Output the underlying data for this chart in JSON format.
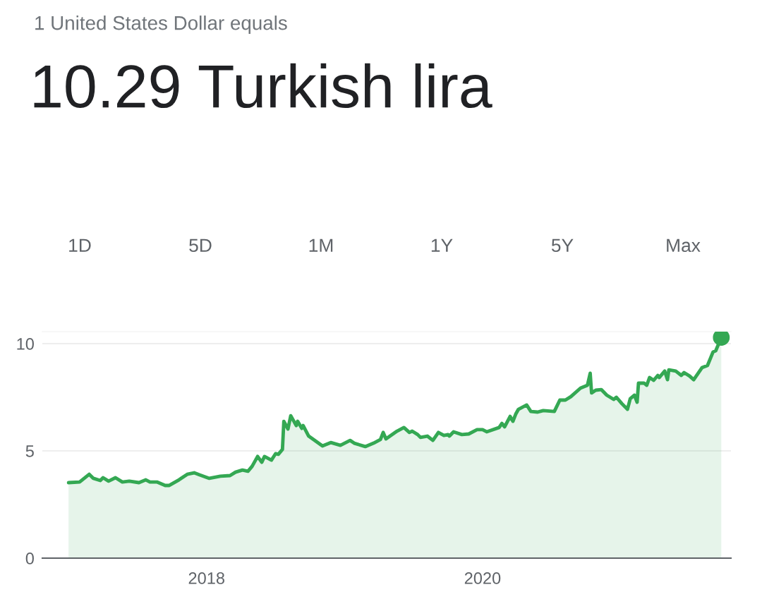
{
  "chart_data": {
    "type": "area",
    "subtitle": "1 United States Dollar equals",
    "title": "10.29 Turkish lira",
    "annotations": [
      "1D",
      "5D",
      "1M",
      "1Y",
      "5Y",
      "Max"
    ],
    "series": [
      {
        "color": "#34a853",
        "x": [
          2017.0,
          2017.08,
          2017.15,
          2017.18,
          2017.23,
          2017.25,
          2017.29,
          2017.34,
          2017.39,
          2017.44,
          2017.51,
          2017.56,
          2017.59,
          2017.64,
          2017.7,
          2017.73,
          2017.8,
          2017.86,
          2017.91,
          2017.95,
          2018.02,
          2018.1,
          2018.17,
          2018.21,
          2018.26,
          2018.3,
          2018.33,
          2018.37,
          2018.4,
          2018.42,
          2018.47,
          2018.5,
          2018.52,
          2018.55,
          2018.56,
          2018.59,
          2018.61,
          2018.65,
          2018.66,
          2018.69,
          2018.7,
          2018.74,
          2018.79,
          2018.84,
          2018.9,
          2018.97,
          2019.04,
          2019.07,
          2019.15,
          2019.21,
          2019.26,
          2019.28,
          2019.3,
          2019.38,
          2019.43,
          2019.47,
          2019.49,
          2019.53,
          2019.55,
          2019.6,
          2019.64,
          2019.68,
          2019.72,
          2019.75,
          2019.76,
          2019.79,
          2019.85,
          2019.9,
          2019.96,
          2020.0,
          2020.03,
          2020.12,
          2020.14,
          2020.16,
          2020.2,
          2020.22,
          2020.24,
          2020.26,
          2020.32,
          2020.35,
          2020.4,
          2020.44,
          2020.52,
          2020.56,
          2020.6,
          2020.64,
          2020.71,
          2020.76,
          2020.78,
          2020.79,
          2020.82,
          2020.86,
          2020.9,
          2020.95,
          2020.97,
          2021.01,
          2021.05,
          2021.07,
          2021.1,
          2021.12,
          2021.13,
          2021.17,
          2021.19,
          2021.21,
          2021.24,
          2021.27,
          2021.28,
          2021.32,
          2021.34,
          2021.35,
          2021.4,
          2021.44,
          2021.46,
          2021.5,
          2021.53,
          2021.59,
          2021.63,
          2021.67,
          2021.69,
          2021.73
        ],
        "values": [
          3.52,
          3.55,
          3.91,
          3.72,
          3.62,
          3.75,
          3.59,
          3.75,
          3.55,
          3.59,
          3.52,
          3.65,
          3.55,
          3.55,
          3.39,
          3.39,
          3.65,
          3.91,
          3.98,
          3.88,
          3.72,
          3.82,
          3.85,
          4.01,
          4.11,
          4.05,
          4.28,
          4.74,
          4.47,
          4.74,
          4.57,
          4.87,
          4.84,
          5.07,
          6.38,
          6.02,
          6.64,
          6.18,
          6.38,
          6.05,
          6.18,
          5.69,
          5.46,
          5.23,
          5.39,
          5.26,
          5.49,
          5.36,
          5.2,
          5.36,
          5.53,
          5.86,
          5.56,
          5.92,
          6.09,
          5.86,
          5.92,
          5.76,
          5.63,
          5.69,
          5.49,
          5.86,
          5.72,
          5.76,
          5.69,
          5.89,
          5.76,
          5.79,
          5.99,
          5.99,
          5.89,
          6.09,
          6.28,
          6.12,
          6.61,
          6.38,
          6.71,
          6.94,
          7.14,
          6.84,
          6.81,
          6.88,
          6.84,
          7.37,
          7.37,
          7.53,
          7.93,
          8.06,
          8.62,
          7.7,
          7.83,
          7.86,
          7.6,
          7.4,
          7.5,
          7.2,
          6.94,
          7.43,
          7.6,
          7.27,
          8.16,
          8.16,
          8.06,
          8.42,
          8.29,
          8.52,
          8.42,
          8.72,
          8.32,
          8.78,
          8.72,
          8.52,
          8.65,
          8.49,
          8.32,
          8.88,
          8.98,
          9.61,
          9.67,
          10.29
        ]
      }
    ],
    "xlim": [
      2016.81,
      2021.8
    ],
    "xticks": [
      2018,
      2020
    ],
    "ylim": [
      0,
      10.56
    ],
    "yticks": [
      0,
      5,
      10
    ],
    "grid": "y",
    "marker": "none",
    "line_style": "solid"
  }
}
